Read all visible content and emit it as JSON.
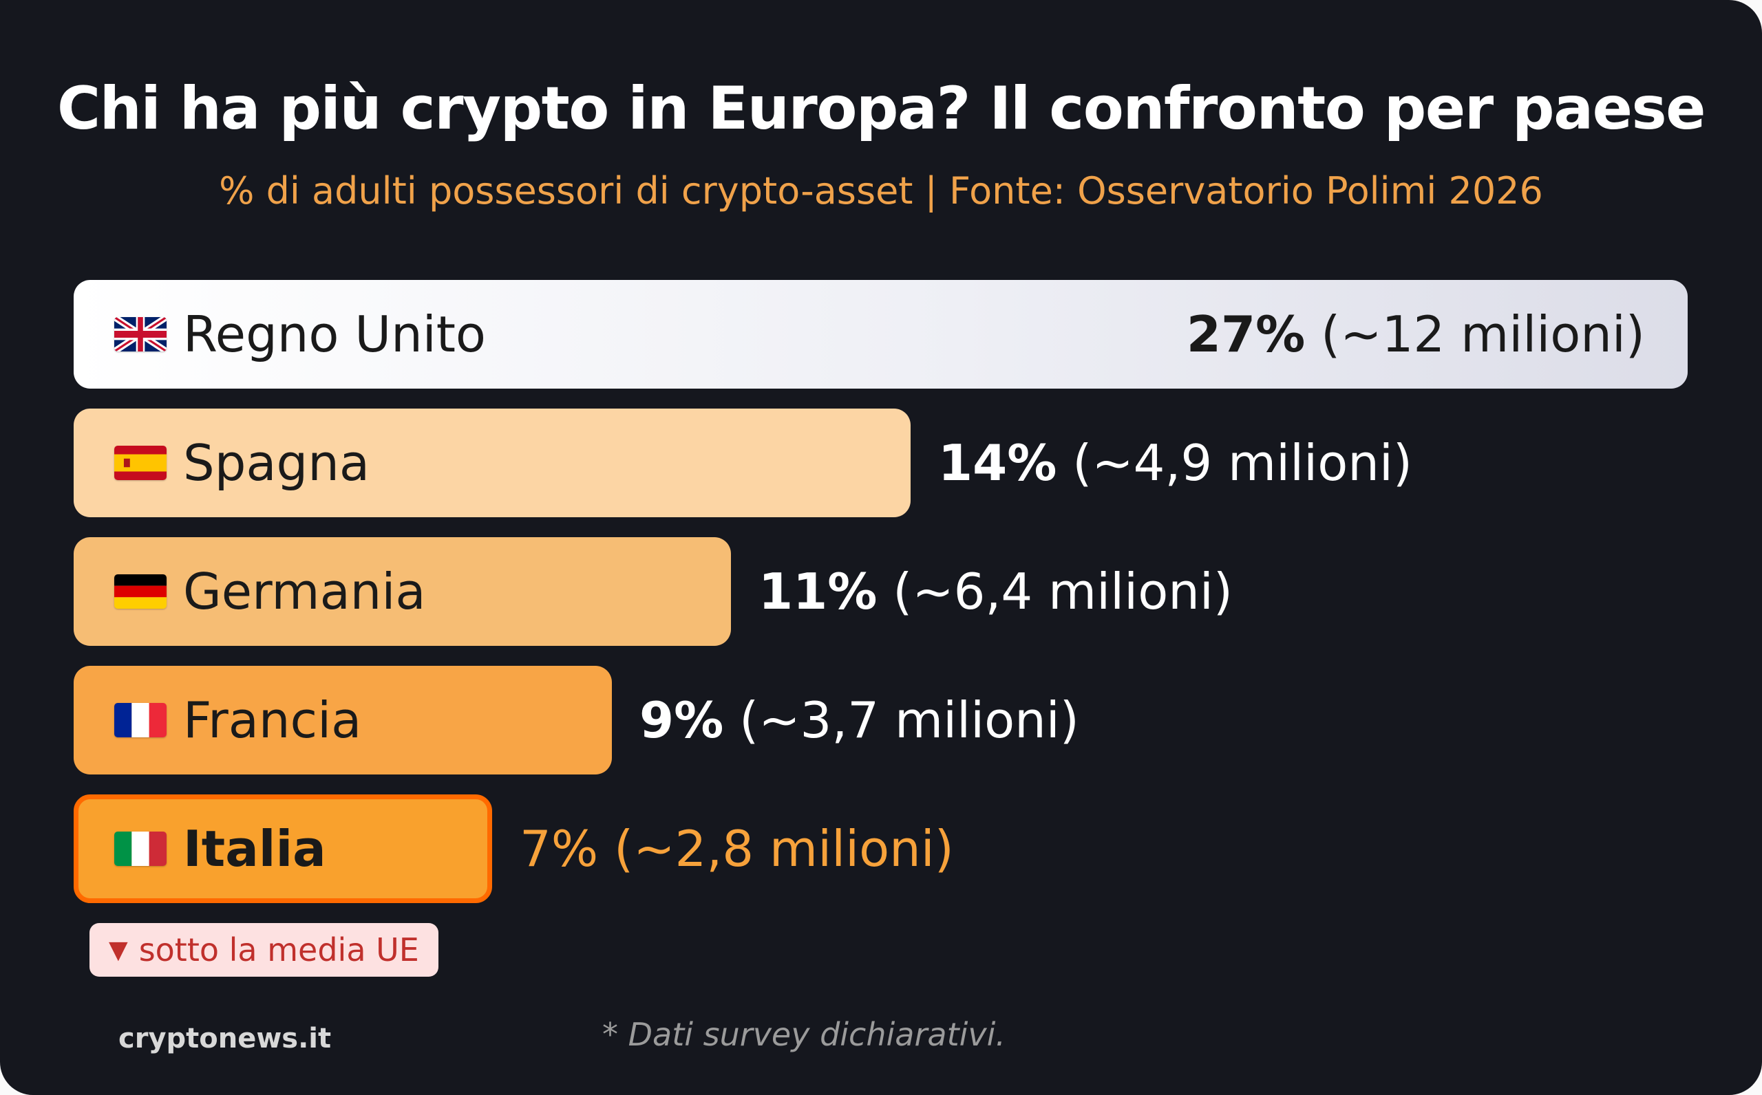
{
  "chart_data": {
    "type": "bar",
    "orientation": "horizontal",
    "title": "Chi ha più crypto in Europa? Il confronto per paese",
    "subtitle": "% di adulti possessori di crypto-asset | Fonte: Osservatorio Polimi 2026",
    "categories": [
      "Regno Unito",
      "Spagna",
      "Germania",
      "Francia",
      "Italia"
    ],
    "values": [
      27,
      14,
      11,
      9,
      7
    ],
    "value_labels": [
      {
        "pct": "27%",
        "detail": "(~12 milioni)"
      },
      {
        "pct": "14%",
        "detail": "(~4,9 milioni)"
      },
      {
        "pct": "11%",
        "detail": "(~6,4 milioni)"
      },
      {
        "pct": "9%",
        "detail": "(~3,7 milioni)"
      },
      {
        "pct": "7%",
        "detail": "(~2,8 milioni)"
      }
    ],
    "flags": [
      "uk-flag-icon",
      "spain-flag-icon",
      "germany-flag-icon",
      "france-flag-icon",
      "italy-flag-icon"
    ],
    "bar_colors": [
      "#eeeff5",
      "#fcd5a4",
      "#f6bd74",
      "#f8a546",
      "#f9a12d"
    ],
    "highlight": "Italia",
    "highlight_color": "#ff6a00",
    "xlim": [
      0,
      27
    ],
    "grid": false,
    "legend": "none"
  },
  "note": {
    "icon": "down-triangle-icon",
    "text": "sotto la media UE"
  },
  "brand": "cryptonews.it",
  "footnote": "* Dati survey dichiarativi.",
  "colors": {
    "background": "#15171e",
    "accent": "#f0a24a",
    "note_bg": "#fde1e1",
    "note_text": "#c0302c"
  }
}
